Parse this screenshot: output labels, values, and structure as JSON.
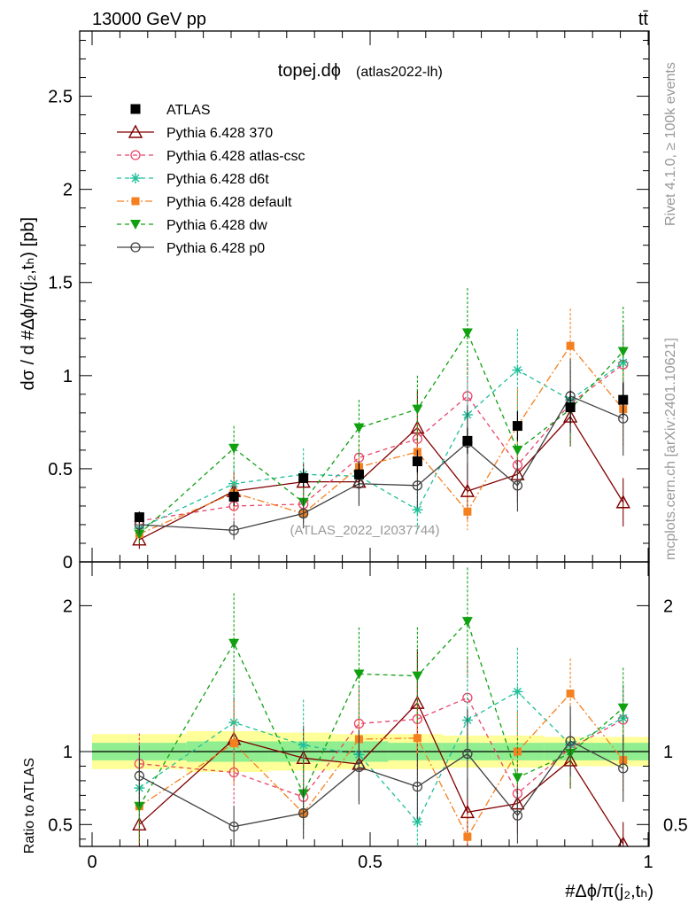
{
  "header": {
    "energy_label": "13000 GeV pp",
    "process_label": "tt̄"
  },
  "side": {
    "rivet": "Rivet 4.1.0, ≥ 100k events",
    "mcplots": "mcplots.cern.ch [arXiv:2401.10621]"
  },
  "chart_data": {
    "type": "scatter",
    "title": "topej.dϕ",
    "title_tag": "(atlas2022-lh)",
    "watermark": "(ATLAS_2022_I2037744)",
    "ylabel_main": "dσ / d #Δϕ/π(j₂,tₕ) [pb]",
    "ylabel_ratio": "Ratio to ATLAS",
    "xlabel": "#Δϕ/π(j₂,tₕ)",
    "xlim": [
      0,
      1
    ],
    "ylim_main": [
      0,
      2.85
    ],
    "ylim_ratio": [
      0.35,
      2.3
    ],
    "x_ticks": [
      "0",
      "0.5",
      "1"
    ],
    "y_ticks_main": [
      "0",
      "0.5",
      "1",
      "1.5",
      "2",
      "2.5"
    ],
    "y_ticks_ratio": [
      "0.5",
      "1",
      "2"
    ],
    "bin_centers": [
      0.085,
      0.255,
      0.38,
      0.48,
      0.585,
      0.675,
      0.765,
      0.86,
      0.955
    ],
    "data_series": {
      "name": "ATLAS",
      "color": "#000000",
      "values": [
        0.24,
        0.35,
        0.45,
        0.47,
        0.54,
        0.65,
        0.73,
        0.83,
        0.87
      ],
      "errors": [
        0.03,
        0.05,
        0.05,
        0.06,
        0.06,
        0.07,
        0.08,
        0.09,
        0.09
      ]
    },
    "ratio_band": {
      "inner": [
        0.06,
        0.07,
        0.07,
        0.07,
        0.06,
        0.06,
        0.06,
        0.06,
        0.06
      ],
      "outer": [
        0.12,
        0.14,
        0.13,
        0.12,
        0.12,
        0.11,
        0.11,
        0.1,
        0.1
      ]
    },
    "series": [
      {
        "name": "Pythia 6.428 370",
        "color": "#800000",
        "marker": "triangle-open",
        "dash": "",
        "values": [
          0.12,
          0.38,
          0.43,
          0.43,
          0.72,
          0.38,
          0.47,
          0.78,
          0.32
        ],
        "errors": [
          0.05,
          0.1,
          0.1,
          0.12,
          0.2,
          0.15,
          0.15,
          0.16,
          0.13
        ]
      },
      {
        "name": "Pythia 6.428 atlas-csc",
        "color": "#e8456a",
        "marker": "circle-open",
        "dash": "5,4",
        "values": [
          0.22,
          0.3,
          0.31,
          0.56,
          0.66,
          0.89,
          0.52,
          0.85,
          1.06
        ],
        "errors": [
          0.05,
          0.08,
          0.1,
          0.12,
          0.18,
          0.18,
          0.15,
          0.18,
          0.2
        ]
      },
      {
        "name": "Pythia 6.428 d6t",
        "color": "#1fbf9a",
        "marker": "star",
        "dash": "5,4",
        "values": [
          0.18,
          0.42,
          0.47,
          0.46,
          0.28,
          0.79,
          1.03,
          0.87,
          1.07
        ],
        "errors": [
          0.05,
          0.1,
          0.14,
          0.14,
          0.12,
          0.2,
          0.22,
          0.2,
          0.2
        ]
      },
      {
        "name": "Pythia 6.428 default",
        "color": "#f58020",
        "marker": "square",
        "dash": "8,3,2,3",
        "values": [
          0.15,
          0.37,
          0.26,
          0.51,
          0.59,
          0.27,
          0.73,
          1.16,
          0.82
        ],
        "errors": [
          0.06,
          0.1,
          0.08,
          0.12,
          0.15,
          0.1,
          0.2,
          0.2,
          0.2
        ]
      },
      {
        "name": "Pythia 6.428 dw",
        "color": "#10a010",
        "marker": "triangle-down",
        "dash": "5,4",
        "values": [
          0.15,
          0.61,
          0.32,
          0.72,
          0.82,
          1.23,
          0.6,
          0.82,
          1.13
        ],
        "errors": [
          0.06,
          0.12,
          0.1,
          0.15,
          0.18,
          0.24,
          0.2,
          0.2,
          0.24
        ]
      },
      {
        "name": "Pythia 6.428 p0",
        "color": "#404040",
        "marker": "circle-open",
        "dash": "",
        "values": [
          0.2,
          0.17,
          0.26,
          0.42,
          0.41,
          0.64,
          0.41,
          0.89,
          0.77
        ],
        "errors": [
          0.05,
          0.05,
          0.08,
          0.12,
          0.12,
          0.2,
          0.14,
          0.2,
          0.2
        ]
      }
    ]
  }
}
